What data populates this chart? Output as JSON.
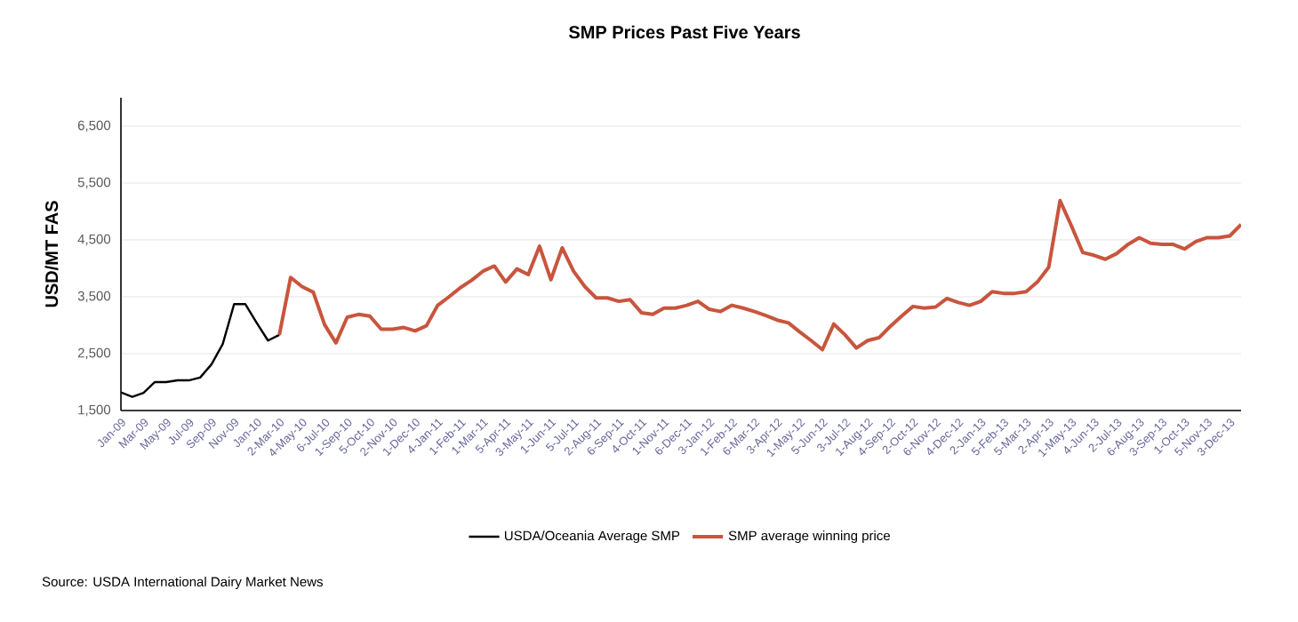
{
  "chart_data": {
    "type": "line",
    "title": "SMP Prices Past Five Years",
    "ylabel": "USD/MT FAS",
    "categories": [
      "Jan-09",
      null,
      "Mar-09",
      null,
      "May-09",
      null,
      "Jul-09",
      null,
      "Sep-09",
      null,
      "Nov-09",
      null,
      "Jan-10",
      null,
      "2-Mar-10",
      null,
      "4-May-10",
      null,
      "6-Jul-10",
      null,
      "1-Sep-10",
      null,
      "5-Oct-10",
      null,
      "2-Nov-10",
      null,
      "1-Dec-10",
      null,
      "4-Jan-11",
      null,
      "1-Feb-11",
      null,
      "1-Mar-11",
      null,
      "5-Apr-11",
      null,
      "3-May-11",
      null,
      "1-Jun-11",
      null,
      "5-Jul-11",
      null,
      "2-Aug-11",
      null,
      "6-Sep-11",
      null,
      "4-Oct-11",
      null,
      "1-Nov-11",
      null,
      "6-Dec-11",
      null,
      "3-Jan-12",
      null,
      "1-Feb-12",
      null,
      "6-Mar-12",
      null,
      "3-Apr-12",
      null,
      "1-May-12",
      null,
      "5-Jun-12",
      null,
      "3-Jul-12",
      null,
      "1-Aug-12",
      null,
      "4-Sep-12",
      null,
      "2-Oct-12",
      null,
      "6-Nov-12",
      null,
      "4-Dec-12",
      null,
      "2-Jan-13",
      null,
      "5-Feb-13",
      null,
      "5-Mar-13",
      null,
      "2-Apr-13",
      null,
      "1-May-13",
      null,
      "4-Jun-13",
      null,
      "2-Jul-13",
      null,
      "6-Aug-13",
      null,
      "3-Sep-13",
      null,
      "1-Oct-13",
      null,
      "5-Nov-13",
      null,
      "3-Dec-13",
      null
    ],
    "series": [
      {
        "name": "USDA/Oceania Average SMP",
        "color": "#000000",
        "values": [
          1820,
          1740,
          1810,
          2000,
          2000,
          2030,
          2030,
          2080,
          2310,
          2670,
          3370,
          3370,
          3040,
          2730,
          2830,
          null,
          null,
          null,
          null,
          null,
          null,
          null,
          null,
          null,
          null,
          null,
          null,
          null,
          null,
          null,
          null,
          null,
          null,
          null,
          null,
          null,
          null,
          null,
          null,
          null,
          null,
          null,
          null,
          null,
          null,
          null,
          null,
          null,
          null,
          null,
          null,
          null,
          null,
          null,
          null,
          null,
          null,
          null,
          null,
          null,
          null,
          null,
          null,
          null,
          null,
          null,
          null,
          null,
          null,
          null,
          null,
          null,
          null,
          null,
          null,
          null,
          null,
          null,
          null,
          null,
          null,
          null,
          null,
          null,
          null,
          null,
          null,
          null,
          null,
          null,
          null,
          null,
          null,
          null,
          null,
          null,
          null,
          null,
          null,
          null
        ]
      },
      {
        "name": "SMP average winning price",
        "color": "#c8553d",
        "values": [
          null,
          null,
          null,
          null,
          null,
          null,
          null,
          null,
          null,
          null,
          null,
          null,
          null,
          null,
          2830,
          3840,
          3680,
          3580,
          3010,
          2690,
          3140,
          3190,
          3160,
          2930,
          2930,
          2960,
          2900,
          2990,
          3350,
          3500,
          3660,
          3790,
          3950,
          4040,
          3760,
          3990,
          3890,
          4390,
          3800,
          4360,
          3950,
          3680,
          3480,
          3480,
          3420,
          3450,
          3220,
          3190,
          3300,
          3300,
          3350,
          3420,
          3280,
          3240,
          3350,
          3300,
          3240,
          3170,
          3090,
          3040,
          2880,
          2730,
          2570,
          3020,
          2830,
          2600,
          2730,
          2780,
          2980,
          3160,
          3330,
          3300,
          3320,
          3470,
          3400,
          3350,
          3420,
          3590,
          3560,
          3560,
          3590,
          3760,
          4020,
          5190,
          4750,
          4280,
          4230,
          4160,
          4260,
          4420,
          4540,
          4440,
          4420,
          4420,
          4340,
          4470,
          4540,
          4540,
          4570,
          4770
        ]
      }
    ],
    "ylim": [
      1500,
      7000
    ],
    "yticks": [
      {
        "value": 1500,
        "label": "1,500"
      },
      {
        "value": 2500,
        "label": "2,500"
      },
      {
        "value": 3500,
        "label": "3,500"
      },
      {
        "value": 4500,
        "label": "4,500"
      },
      {
        "value": 5500,
        "label": "5,500"
      },
      {
        "value": 6500,
        "label": "6,500"
      }
    ],
    "grid": "y",
    "legend": "bottom",
    "annotations": [
      "Source: USDA International Dairy Market News"
    ]
  }
}
